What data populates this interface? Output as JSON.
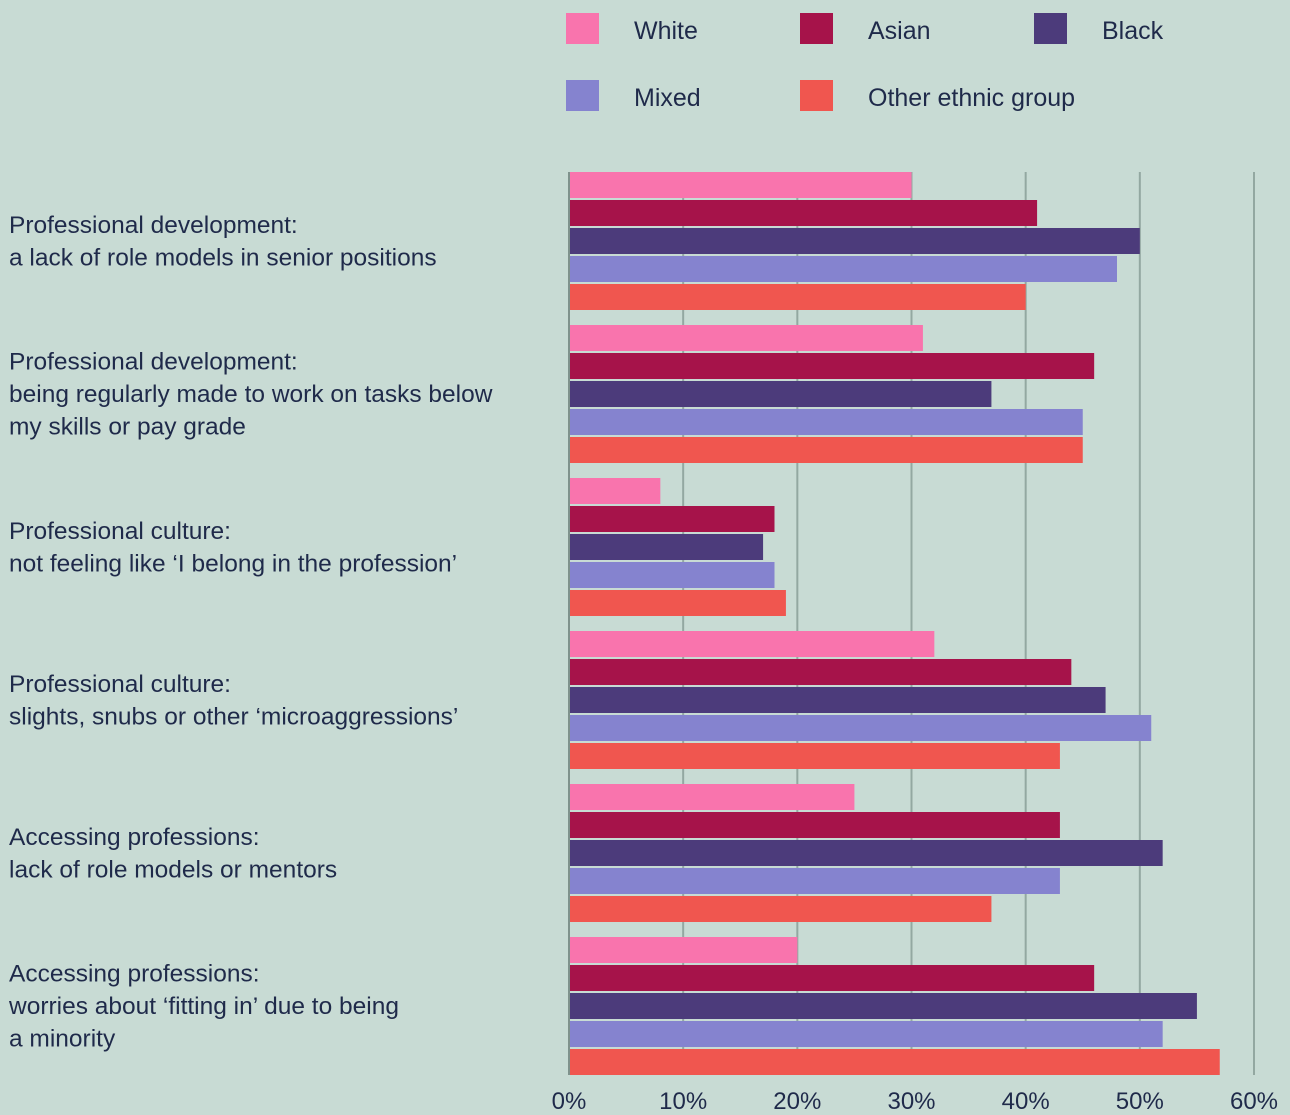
{
  "chart_data": {
    "type": "bar",
    "orientation": "horizontal",
    "title": "",
    "xlabel": "",
    "ylabel": "",
    "xlim": [
      0,
      60
    ],
    "x_ticks": [
      "0%",
      "10%",
      "20%",
      "30%",
      "40%",
      "50%",
      "60%"
    ],
    "grid": "vertical",
    "legend_position": "top",
    "categories": [
      [
        "Professional development:",
        "a lack of role models in senior positions"
      ],
      [
        "Professional development:",
        "being regularly made to work on tasks below",
        "my skills or pay grade"
      ],
      [
        "Professional culture:",
        "not feeling like ‘I belong in the profession’"
      ],
      [
        "Professional culture:",
        "slights, snubs or other ‘microaggressions’"
      ],
      [
        "Accessing professions:",
        "lack of role models or mentors"
      ],
      [
        "Accessing professions:",
        "worries about ‘fitting in’ due to being",
        "a minority"
      ]
    ],
    "series": [
      {
        "name": "White",
        "color": "#f974ad",
        "values": [
          30,
          31,
          8,
          32,
          25,
          20
        ]
      },
      {
        "name": "Asian",
        "color": "#a6134a",
        "values": [
          41,
          46,
          18,
          44,
          43,
          46
        ]
      },
      {
        "name": "Black",
        "color": "#4c3b7b",
        "values": [
          50,
          37,
          17,
          47,
          52,
          55
        ]
      },
      {
        "name": "Mixed",
        "color": "#8583cf",
        "values": [
          48,
          45,
          18,
          51,
          43,
          52
        ]
      },
      {
        "name": "Other ethnic group",
        "color": "#f0564f",
        "values": [
          40,
          45,
          19,
          43,
          37,
          57
        ]
      }
    ]
  }
}
